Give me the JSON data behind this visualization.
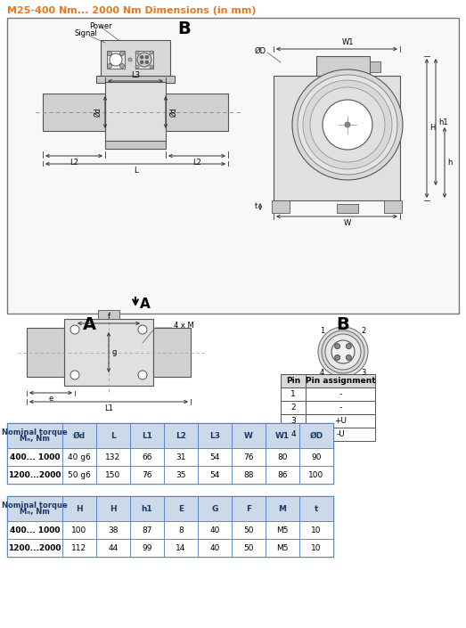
{
  "title": "M25-400 Nm... 2000 Nm Dimensions (in mm)",
  "title_color": "#E87722",
  "background_color": "#ffffff",
  "table1_headers": [
    "Nominal torque\nMₙ, Nm",
    "Ød",
    "L",
    "L1",
    "L2",
    "L3",
    "W",
    "W1",
    "ØD"
  ],
  "table1_rows": [
    [
      "400... 1000",
      "40 g6",
      "132",
      "66",
      "31",
      "54",
      "76",
      "80",
      "90"
    ],
    [
      "1200...2000",
      "50 g6",
      "150",
      "76",
      "35",
      "54",
      "88",
      "86",
      "100"
    ]
  ],
  "table2_headers": [
    "Nominal torque\nMₙ, Nm",
    "H",
    "H",
    "h1",
    "E",
    "G",
    "F",
    "M",
    "t"
  ],
  "table2_rows": [
    [
      "400... 1000",
      "100",
      "38",
      "87",
      "8",
      "40",
      "50",
      "M5",
      "10"
    ],
    [
      "1200...2000",
      "112",
      "44",
      "99",
      "14",
      "40",
      "50",
      "M5",
      "10"
    ]
  ],
  "pin_table_headers": [
    "Pin",
    "Pin assignment"
  ],
  "pin_table_rows": [
    [
      "1",
      "-"
    ],
    [
      "2",
      "-"
    ],
    [
      "3",
      "+U"
    ],
    [
      "4",
      "-U"
    ]
  ],
  "header_bg": "#ccd9e8",
  "table_border": "#4472c4"
}
